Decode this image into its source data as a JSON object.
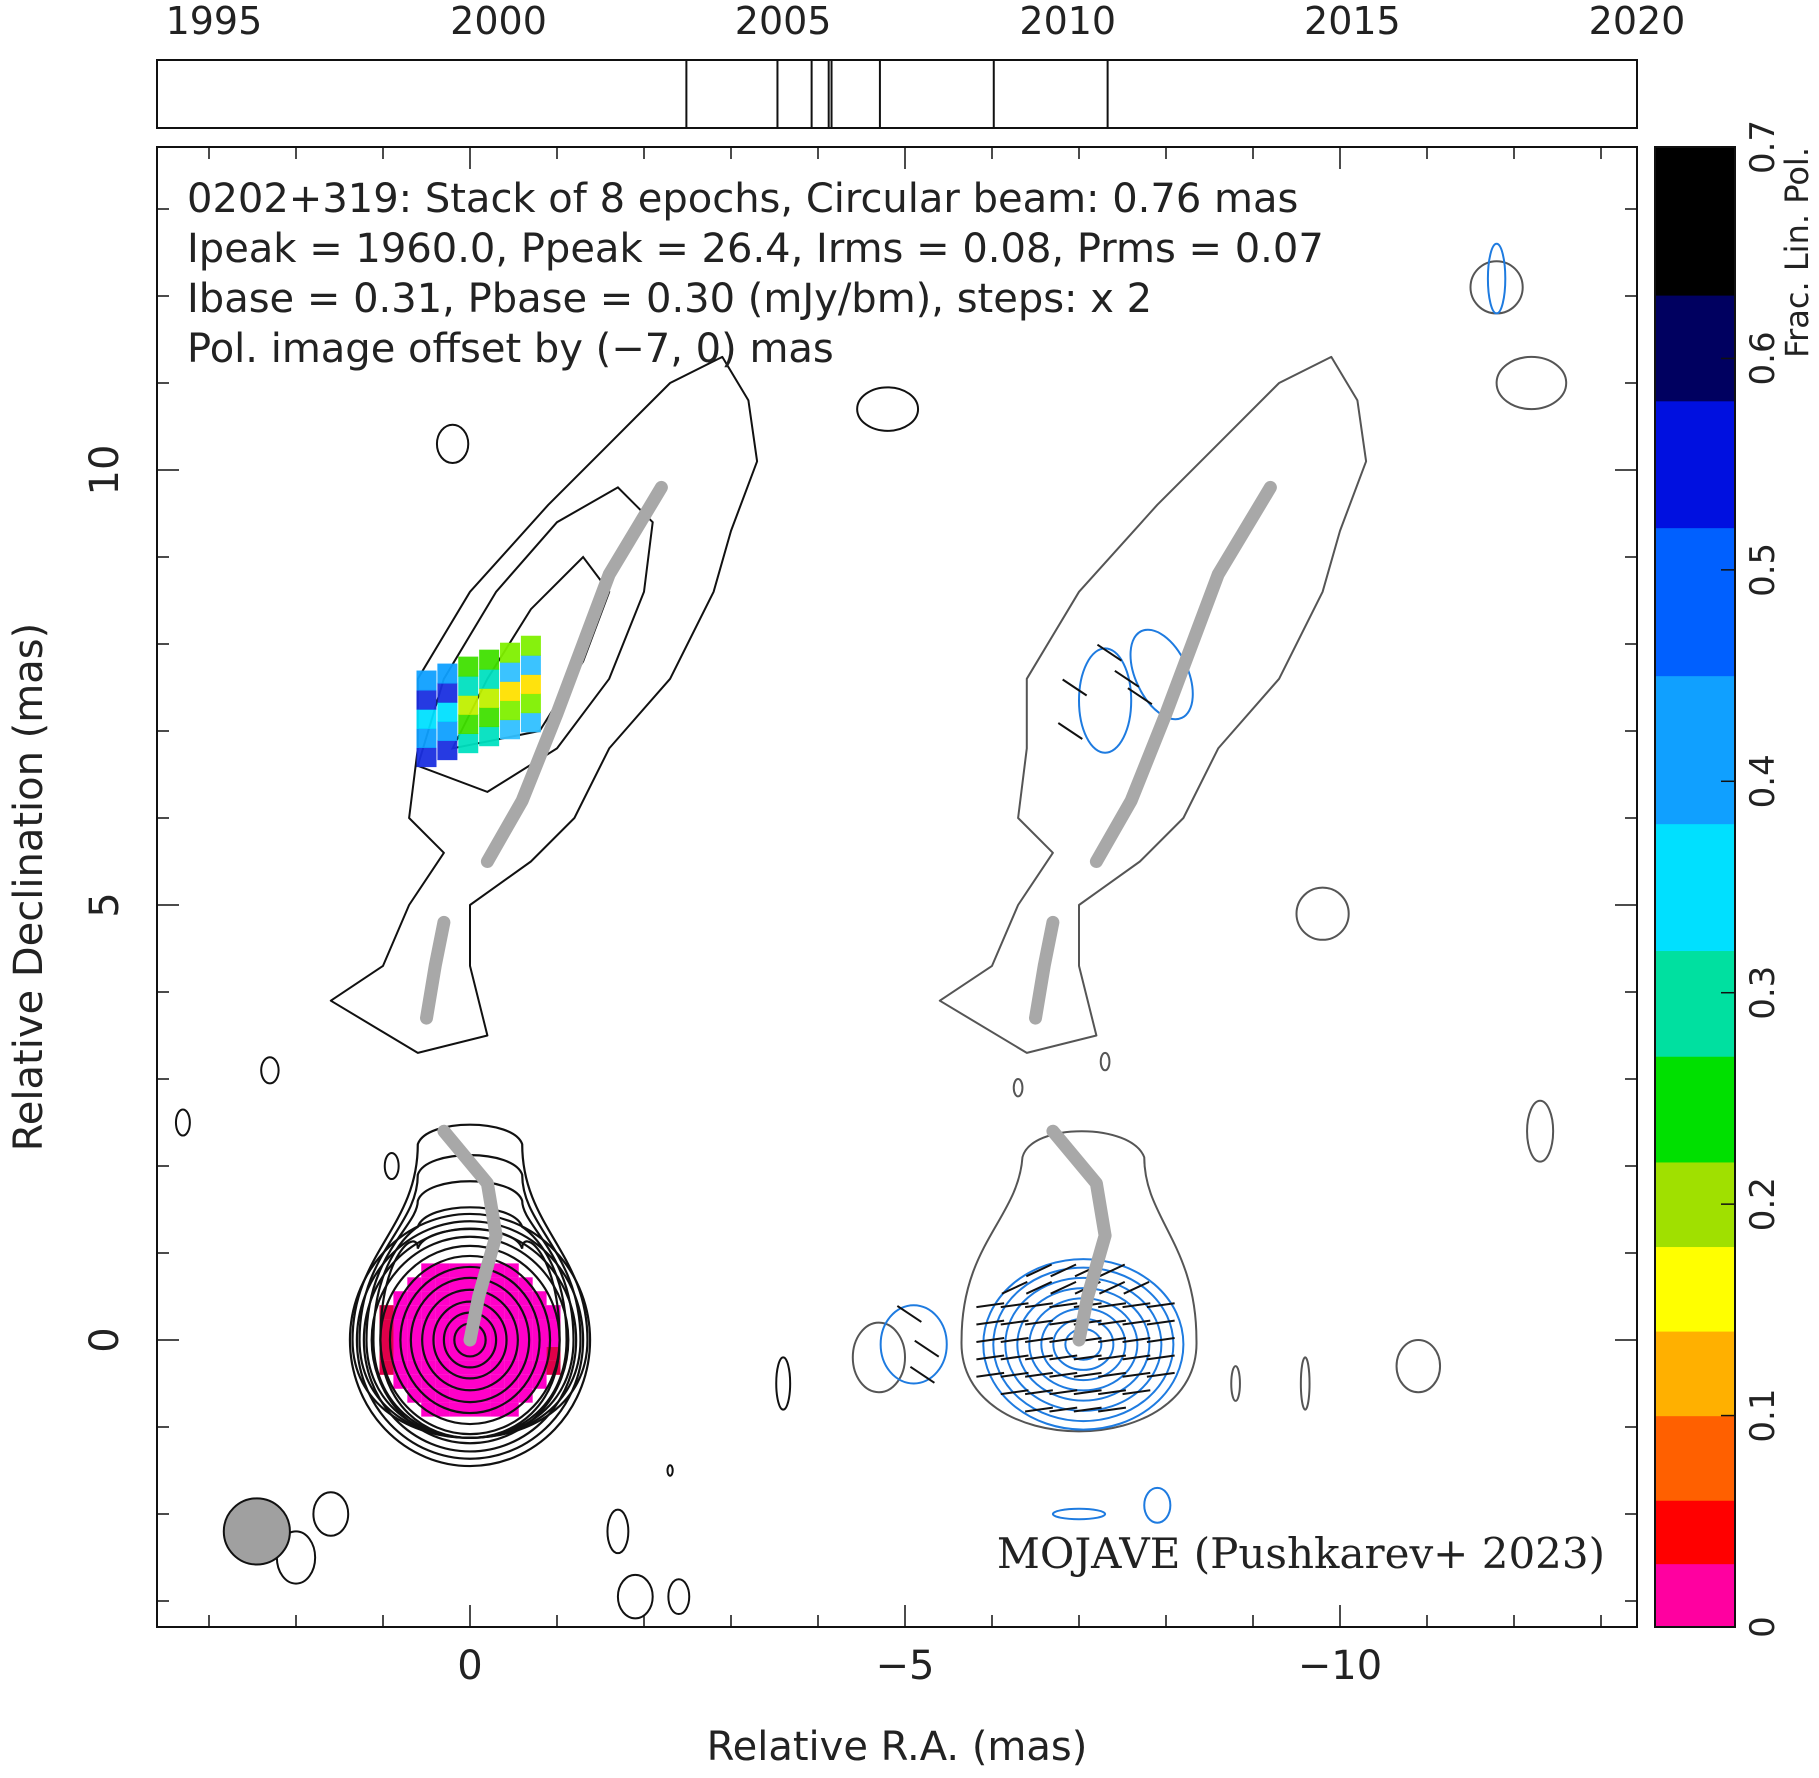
{
  "chart_data": {
    "type": "contour-map",
    "source_label": "MOJAVE (Pushkarev+ 2023)",
    "header_lines": [
      "0202+319: Stack of 8 epochs, Circular beam: 0.76 mas",
      "Ipeak = 1960.0, Ppeak = 26.4, Irms = 0.08, Prms = 0.07",
      "Ibase = 0.31, Pbase = 0.30 (mJy/bm), steps: x 2"
    ],
    "pol_offset_note": "Pol. image offset by (−7, 0) mas",
    "xlabel": "Relative R.A. (mas)",
    "ylabel": "Relative Declination (mas)",
    "x_range": [
      3.6,
      -13.4
    ],
    "y_range": [
      -3.0,
      13.7
    ],
    "x_ticks": [
      {
        "value": 0,
        "label": "0"
      },
      {
        "value": -5,
        "label": "−5"
      },
      {
        "value": -10,
        "label": "−10"
      }
    ],
    "y_ticks": [
      {
        "value": 0,
        "label": "0"
      },
      {
        "value": 5,
        "label": "5"
      },
      {
        "value": 10,
        "label": "10"
      }
    ],
    "beam_diameter_mas": 0.76,
    "epoch_timeline": {
      "range": [
        1994,
        2020
      ],
      "tick_labels": [
        "1995",
        "2000",
        "2005",
        "2010",
        "2015",
        "2020"
      ],
      "epochs": [
        2003.3,
        2004.9,
        2005.5,
        2005.8,
        2005.85,
        2006.7,
        2008.7,
        2010.7
      ]
    },
    "colorbar": {
      "label": "Frac. Lin. Pol.",
      "range": [
        0,
        0.7
      ],
      "tick_labels": [
        "0",
        "0.1",
        "0.2",
        "0.3",
        "0.4",
        "0.5",
        "0.6",
        "0.7"
      ]
    },
    "ridge_line": [
      [
        0,
        0
      ],
      [
        -0.1,
        0.5
      ],
      [
        -0.3,
        1.2
      ],
      [
        -0.2,
        1.8
      ],
      [
        0.3,
        2.4
      ]
    ],
    "jet_ridge": [
      [
        0.5,
        3.7
      ],
      [
        0.4,
        4.3
      ],
      [
        0.3,
        4.8
      ],
      [
        -0.2,
        5.5
      ],
      [
        -0.6,
        6.2
      ],
      [
        -1.0,
        7.2
      ],
      [
        -1.3,
        8.0
      ],
      [
        -1.6,
        8.8
      ],
      [
        -2.2,
        9.8
      ]
    ]
  },
  "colors": {
    "total_intensity_contours": "#111111",
    "pol_contours": "#1e7be0",
    "ridge": "#a8a8a8",
    "source_label": "#1a2fe0",
    "core_fill": "#ff00c8"
  }
}
